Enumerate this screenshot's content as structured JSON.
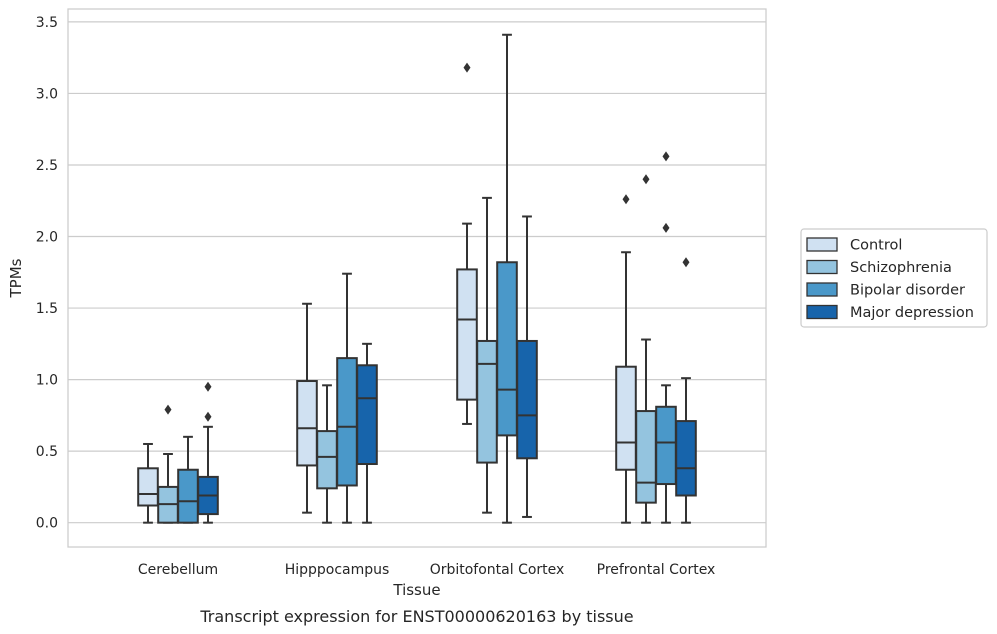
{
  "chart_data": {
    "type": "box",
    "caption": "Transcript expression for ENST00000620163 by tissue",
    "xlabel": "Tissue",
    "ylabel": "TPMs",
    "ylim": [
      -0.17,
      3.59
    ],
    "yticks": [
      0.0,
      0.5,
      1.0,
      1.5,
      2.0,
      2.5,
      3.0,
      3.5
    ],
    "ytick_labels": [
      "0.0",
      "0.5",
      "1.0",
      "1.5",
      "2.0",
      "2.5",
      "3.0",
      "3.5"
    ],
    "grid": "horizontal",
    "legend_position": "right",
    "categories": [
      "Cerebellum",
      "Hipppocampus",
      "Orbitofontal Cortex",
      "Prefrontal Cortex"
    ],
    "series": [
      {
        "name": "Control",
        "color": "#d0e1f2",
        "boxes": [
          {
            "whislo": 0.0,
            "q1": 0.12,
            "med": 0.2,
            "q3": 0.38,
            "whishi": 0.55,
            "fliers": []
          },
          {
            "whislo": 0.07,
            "q1": 0.4,
            "med": 0.66,
            "q3": 0.99,
            "whishi": 1.53,
            "fliers": []
          },
          {
            "whislo": 0.69,
            "q1": 0.86,
            "med": 1.42,
            "q3": 1.77,
            "whishi": 2.09,
            "fliers": [
              3.18
            ]
          },
          {
            "whislo": 0.0,
            "q1": 0.37,
            "med": 0.56,
            "q3": 1.09,
            "whishi": 1.89,
            "fliers": [
              2.26
            ]
          }
        ]
      },
      {
        "name": "Schizophrenia",
        "color": "#94c4df",
        "boxes": [
          {
            "whislo": 0.0,
            "q1": 0.0,
            "med": 0.13,
            "q3": 0.25,
            "whishi": 0.48,
            "fliers": [
              0.79
            ]
          },
          {
            "whislo": 0.0,
            "q1": 0.24,
            "med": 0.46,
            "q3": 0.64,
            "whishi": 0.96,
            "fliers": []
          },
          {
            "whislo": 0.07,
            "q1": 0.42,
            "med": 1.11,
            "q3": 1.27,
            "whishi": 2.27,
            "fliers": []
          },
          {
            "whislo": 0.0,
            "q1": 0.14,
            "med": 0.28,
            "q3": 0.78,
            "whishi": 1.28,
            "fliers": [
              2.4
            ]
          }
        ]
      },
      {
        "name": "Bipolar disorder",
        "color": "#4a98c9",
        "boxes": [
          {
            "whislo": 0.0,
            "q1": 0.0,
            "med": 0.15,
            "q3": 0.37,
            "whishi": 0.6,
            "fliers": []
          },
          {
            "whislo": 0.0,
            "q1": 0.26,
            "med": 0.67,
            "q3": 1.15,
            "whishi": 1.74,
            "fliers": []
          },
          {
            "whislo": 0.0,
            "q1": 0.61,
            "med": 0.93,
            "q3": 1.82,
            "whishi": 3.41,
            "fliers": []
          },
          {
            "whislo": 0.0,
            "q1": 0.27,
            "med": 0.56,
            "q3": 0.81,
            "whishi": 0.96,
            "fliers": [
              2.06,
              2.56
            ]
          }
        ]
      },
      {
        "name": "Major depression",
        "color": "#1764ab",
        "boxes": [
          {
            "whislo": 0.0,
            "q1": 0.06,
            "med": 0.19,
            "q3": 0.32,
            "whishi": 0.67,
            "fliers": [
              0.74,
              0.95
            ]
          },
          {
            "whislo": 0.0,
            "q1": 0.41,
            "med": 0.87,
            "q3": 1.1,
            "whishi": 1.25,
            "fliers": []
          },
          {
            "whislo": 0.04,
            "q1": 0.45,
            "med": 0.75,
            "q3": 1.27,
            "whishi": 2.14,
            "fliers": []
          },
          {
            "whislo": 0.0,
            "q1": 0.19,
            "med": 0.38,
            "q3": 0.71,
            "whishi": 1.01,
            "fliers": [
              1.82
            ]
          }
        ]
      }
    ],
    "colors": {
      "edge": "#333333",
      "grid": "#cccccc",
      "frame": "#cccccc",
      "legend_border": "#cccccc"
    }
  }
}
